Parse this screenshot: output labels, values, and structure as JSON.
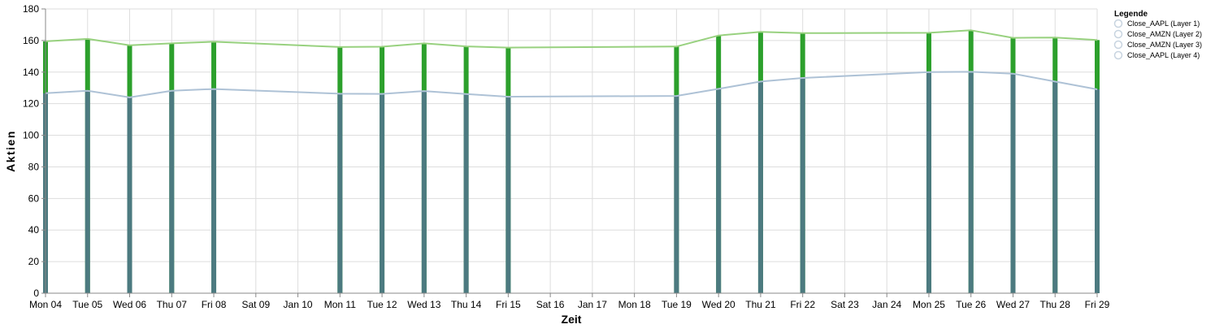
{
  "chart_data": {
    "type": "bar",
    "x": [
      "Mon 04",
      "Tue 05",
      "Wed 06",
      "Thu 07",
      "Fri 08",
      "Mon 11",
      "Tue 12",
      "Wed 13",
      "Thu 14",
      "Fri 15",
      "Tue 19",
      "Wed 20",
      "Thu 21",
      "Fri 22",
      "Mon 25",
      "Tue 26",
      "Wed 27",
      "Thu 28",
      "Fri 29"
    ],
    "x_ticks": [
      "Mon 04",
      "Tue 05",
      "Wed 06",
      "Thu 07",
      "Fri 08",
      "Sat 09",
      "Jan 10",
      "Mon 11",
      "Tue 12",
      "Wed 13",
      "Thu 14",
      "Fri 15",
      "Sat 16",
      "Jan 17",
      "Mon 18",
      "Tue 19",
      "Wed 20",
      "Thu 21",
      "Fri 22",
      "Sat 23",
      "Jan 24",
      "Mon 25",
      "Tue 26",
      "Wed 27",
      "Thu 28",
      "Fri 29"
    ],
    "xlabel": "Zeit",
    "ylabel": "Aktien",
    "ylim": [
      0,
      180
    ],
    "y_ticks": [
      0,
      20,
      40,
      60,
      80,
      100,
      120,
      140,
      160,
      180
    ],
    "grid": true,
    "legend": {
      "title": "Legende",
      "position": "right"
    },
    "series": [
      {
        "name": "Close_AAPL (Layer 1)",
        "mark": "line",
        "color": "#aec2d6",
        "values": [
          126.6,
          128.2,
          124.0,
          128.2,
          129.3,
          126.3,
          126.2,
          128.0,
          126.1,
          124.4,
          124.9,
          129.4,
          134.0,
          136.3,
          140.0,
          140.2,
          139.0,
          134.0,
          129.1
        ]
      },
      {
        "name": "Close_AMZN (Layer 2)",
        "mark": "line",
        "color": "#98d17f",
        "values": [
          159.5,
          161.0,
          157.0,
          158.2,
          159.2,
          155.9,
          156.1,
          158.2,
          156.3,
          155.5,
          156.2,
          163.2,
          165.5,
          164.7,
          164.9,
          166.5,
          161.7,
          161.9,
          160.3
        ]
      },
      {
        "name": "Close_AMZN (Layer 3)",
        "mark": "bar",
        "color": "#2ca02c",
        "values": [
          159.5,
          161.0,
          157.0,
          158.2,
          159.2,
          155.9,
          156.1,
          158.2,
          156.3,
          155.5,
          156.2,
          163.2,
          165.5,
          164.7,
          164.9,
          166.5,
          161.7,
          161.9,
          160.3
        ]
      },
      {
        "name": "Close_AAPL (Layer 4)",
        "mark": "bar",
        "color": "#4c7a80",
        "values": [
          126.6,
          128.2,
          124.0,
          128.2,
          129.3,
          126.3,
          126.2,
          128.0,
          126.1,
          124.4,
          124.9,
          129.4,
          134.0,
          136.3,
          140.0,
          140.2,
          139.0,
          134.0,
          129.1
        ]
      }
    ]
  },
  "colors": {
    "grid": "#dddddd",
    "axis": "#888888",
    "text": "#000000",
    "legend_symbol": "#c8d4e0"
  }
}
